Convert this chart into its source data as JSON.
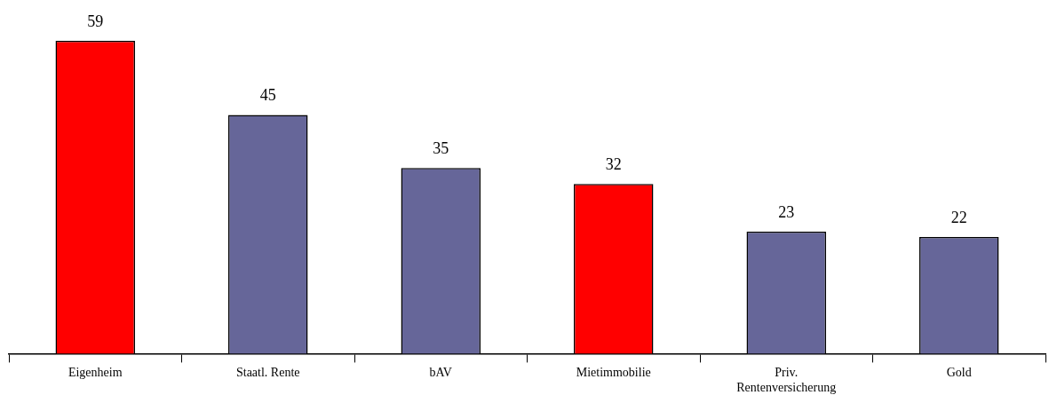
{
  "chart_data": {
    "type": "bar",
    "categories": [
      "Eigenheim",
      "Staatl. Rente",
      "bAV",
      "Mietimmobilie",
      "Priv. Rentenversicherung",
      "Gold"
    ],
    "values": [
      59,
      45,
      35,
      32,
      23,
      22
    ],
    "colors": [
      "#ff0000",
      "#666699",
      "#666699",
      "#ff0000",
      "#666699",
      "#666699"
    ],
    "data_labels": true,
    "grid": false,
    "legend": false
  }
}
